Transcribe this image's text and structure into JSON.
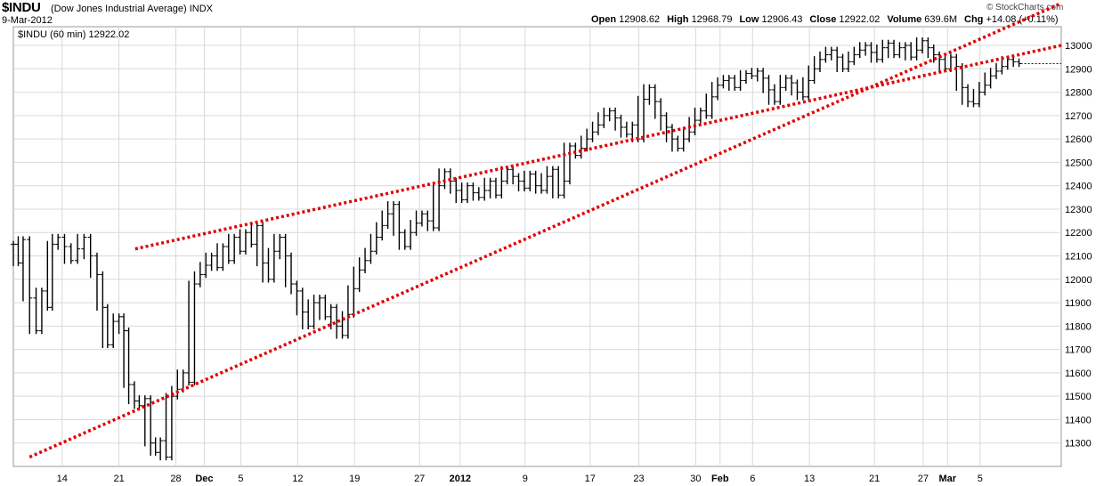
{
  "header": {
    "symbol": "$INDU",
    "company": "(Dow Jones Industrial Average)",
    "exchange": "INDX",
    "date": "9-Mar-2012",
    "brand": "© StockCharts.com",
    "quote": [
      {
        "label": "Open",
        "value": "12908.62"
      },
      {
        "label": "High",
        "value": "12968.79"
      },
      {
        "label": "Low",
        "value": "12906.43"
      },
      {
        "label": "Close",
        "value": "12922.02"
      },
      {
        "label": "Volume",
        "value": "639.6M"
      },
      {
        "label": "Chg",
        "value": "+14.08 (+0.11%)"
      }
    ]
  },
  "colors": {
    "price_bars": "#000000",
    "trendlines": "#e00000",
    "grid": "#d9d9d9",
    "last_price_marker": "#0000cc"
  },
  "chart_data": {
    "type": "line",
    "legend": "$INDU (60 min) 12922.02",
    "legend_placement": "top-left",
    "grid": true,
    "y_axis_side": "right",
    "ylim": [
      11200,
      13080
    ],
    "y_ticks": [
      11300,
      11400,
      11500,
      11600,
      11700,
      11800,
      11900,
      12000,
      12100,
      12200,
      12300,
      12400,
      12500,
      12600,
      12700,
      12800,
      12900,
      13000
    ],
    "x_ticks": [
      {
        "label": "14",
        "bold": false,
        "at": 14
      },
      {
        "label": "21",
        "bold": false,
        "at": 21
      },
      {
        "label": "28",
        "bold": false,
        "at": 28
      },
      {
        "label": "Dec",
        "bold": true,
        "at": 31.5
      },
      {
        "label": "5",
        "bold": false,
        "at": 36
      },
      {
        "label": "12",
        "bold": false,
        "at": 43
      },
      {
        "label": "19",
        "bold": false,
        "at": 50
      },
      {
        "label": "27",
        "bold": false,
        "at": 58
      },
      {
        "label": "2012",
        "bold": true,
        "at": 63
      },
      {
        "label": "9",
        "bold": false,
        "at": 71
      },
      {
        "label": "17",
        "bold": false,
        "at": 79
      },
      {
        "label": "23",
        "bold": false,
        "at": 85
      },
      {
        "label": "30",
        "bold": false,
        "at": 92
      },
      {
        "label": "Feb",
        "bold": true,
        "at": 95
      },
      {
        "label": "6",
        "bold": false,
        "at": 99
      },
      {
        "label": "13",
        "bold": false,
        "at": 106
      },
      {
        "label": "21",
        "bold": false,
        "at": 114
      },
      {
        "label": "27",
        "bold": false,
        "at": 120
      },
      {
        "label": "Mar",
        "bold": true,
        "at": 123
      },
      {
        "label": "5",
        "bold": false,
        "at": 127
      }
    ],
    "xlim": [
      8,
      137
    ],
    "close_points": [
      [
        8,
        12150
      ],
      [
        8.6,
        12070
      ],
      [
        9.2,
        12170
      ],
      [
        10,
        11920
      ],
      [
        10.8,
        11780
      ],
      [
        11.5,
        11950
      ],
      [
        12.2,
        11880
      ],
      [
        12.8,
        12150
      ],
      [
        13.5,
        12180
      ],
      [
        14.3,
        12140
      ],
      [
        15.1,
        12080
      ],
      [
        15.9,
        12130
      ],
      [
        16.7,
        12180
      ],
      [
        17.5,
        12100
      ],
      [
        18.3,
        12020
      ],
      [
        19.0,
        11880
      ],
      [
        19.6,
        11720
      ],
      [
        20.3,
        11820
      ],
      [
        21.0,
        11840
      ],
      [
        21.6,
        11780
      ],
      [
        22.2,
        11550
      ],
      [
        22.9,
        11480
      ],
      [
        23.5,
        11460
      ],
      [
        24.2,
        11490
      ],
      [
        24.9,
        11300
      ],
      [
        25.5,
        11260
      ],
      [
        26.1,
        11310
      ],
      [
        26.8,
        11240
      ],
      [
        27.5,
        11500
      ],
      [
        28.2,
        11530
      ],
      [
        28.9,
        11600
      ],
      [
        29.6,
        11560
      ],
      [
        30.3,
        11980
      ],
      [
        31.0,
        12020
      ],
      [
        31.7,
        12060
      ],
      [
        32.4,
        12100
      ],
      [
        33.1,
        12050
      ],
      [
        33.8,
        12140
      ],
      [
        34.5,
        12080
      ],
      [
        35.2,
        12180
      ],
      [
        35.9,
        12120
      ],
      [
        36.6,
        12200
      ],
      [
        37.3,
        12150
      ],
      [
        38.0,
        12230
      ],
      [
        38.7,
        12070
      ],
      [
        39.4,
        12000
      ],
      [
        40.1,
        12120
      ],
      [
        40.8,
        12180
      ],
      [
        41.5,
        12100
      ],
      [
        42.2,
        11980
      ],
      [
        42.9,
        11950
      ],
      [
        43.6,
        11860
      ],
      [
        44.3,
        11800
      ],
      [
        45.0,
        11900
      ],
      [
        45.7,
        11920
      ],
      [
        46.4,
        11840
      ],
      [
        47.1,
        11880
      ],
      [
        47.8,
        11800
      ],
      [
        48.5,
        11760
      ],
      [
        49.2,
        11850
      ],
      [
        49.9,
        11960
      ],
      [
        50.6,
        12040
      ],
      [
        51.3,
        12080
      ],
      [
        52.0,
        12120
      ],
      [
        52.7,
        12180
      ],
      [
        53.4,
        12230
      ],
      [
        54.1,
        12280
      ],
      [
        54.8,
        12320
      ],
      [
        55.5,
        12200
      ],
      [
        56.2,
        12140
      ],
      [
        56.9,
        12200
      ],
      [
        57.6,
        12240
      ],
      [
        58.3,
        12280
      ],
      [
        59.0,
        12250
      ],
      [
        59.7,
        12220
      ],
      [
        60.4,
        12400
      ],
      [
        61.1,
        12460
      ],
      [
        61.8,
        12420
      ],
      [
        62.5,
        12380
      ],
      [
        63.2,
        12340
      ],
      [
        63.9,
        12400
      ],
      [
        64.6,
        12370
      ],
      [
        65.3,
        12350
      ],
      [
        66.0,
        12380
      ],
      [
        66.7,
        12420
      ],
      [
        67.4,
        12360
      ],
      [
        68.1,
        12420
      ],
      [
        68.8,
        12470
      ],
      [
        69.5,
        12440
      ],
      [
        70.2,
        12420
      ],
      [
        70.9,
        12390
      ],
      [
        71.6,
        12450
      ],
      [
        72.3,
        12400
      ],
      [
        73.0,
        12380
      ],
      [
        73.7,
        12440
      ],
      [
        74.4,
        12470
      ],
      [
        75.1,
        12360
      ],
      [
        75.8,
        12420
      ],
      [
        76.5,
        12570
      ],
      [
        77.2,
        12530
      ],
      [
        77.9,
        12560
      ],
      [
        78.6,
        12600
      ],
      [
        79.3,
        12630
      ],
      [
        80.0,
        12660
      ],
      [
        80.7,
        12700
      ],
      [
        81.4,
        12720
      ],
      [
        82.1,
        12690
      ],
      [
        82.8,
        12650
      ],
      [
        83.5,
        12620
      ],
      [
        84.2,
        12660
      ],
      [
        84.9,
        12600
      ],
      [
        85.6,
        12770
      ],
      [
        86.3,
        12820
      ],
      [
        87.0,
        12760
      ],
      [
        87.7,
        12700
      ],
      [
        88.4,
        12650
      ],
      [
        89.1,
        12600
      ],
      [
        89.8,
        12560
      ],
      [
        90.5,
        12600
      ],
      [
        91.2,
        12630
      ],
      [
        91.9,
        12680
      ],
      [
        92.6,
        12720
      ],
      [
        93.3,
        12700
      ],
      [
        94.0,
        12780
      ],
      [
        94.7,
        12830
      ],
      [
        95.4,
        12850
      ],
      [
        96.1,
        12860
      ],
      [
        96.8,
        12820
      ],
      [
        97.5,
        12850
      ],
      [
        98.2,
        12880
      ],
      [
        98.9,
        12870
      ],
      [
        99.6,
        12890
      ],
      [
        100.3,
        12860
      ],
      [
        101.0,
        12810
      ],
      [
        101.7,
        12760
      ],
      [
        102.4,
        12820
      ],
      [
        103.1,
        12860
      ],
      [
        103.8,
        12840
      ],
      [
        104.5,
        12800
      ],
      [
        105.2,
        12780
      ],
      [
        105.9,
        12850
      ],
      [
        106.6,
        12900
      ],
      [
        107.3,
        12940
      ],
      [
        108.0,
        12960
      ],
      [
        108.7,
        12980
      ],
      [
        109.4,
        12950
      ],
      [
        110.1,
        12900
      ],
      [
        110.8,
        12930
      ],
      [
        111.5,
        12960
      ],
      [
        112.2,
        12980
      ],
      [
        112.9,
        13000
      ],
      [
        113.6,
        12970
      ],
      [
        114.3,
        12940
      ],
      [
        115.0,
        12990
      ],
      [
        115.7,
        13010
      ],
      [
        116.4,
        12960
      ],
      [
        117.1,
        12990
      ],
      [
        117.8,
        13000
      ],
      [
        118.5,
        12950
      ],
      [
        119.2,
        12980
      ],
      [
        119.9,
        13020
      ],
      [
        120.6,
        12990
      ],
      [
        121.3,
        12960
      ],
      [
        122.0,
        12940
      ],
      [
        122.7,
        12900
      ],
      [
        123.4,
        12950
      ],
      [
        124.1,
        12910
      ],
      [
        124.8,
        12820
      ],
      [
        125.5,
        12760
      ],
      [
        126.2,
        12750
      ],
      [
        126.9,
        12800
      ],
      [
        127.6,
        12830
      ],
      [
        128.3,
        12870
      ],
      [
        129.0,
        12890
      ],
      [
        129.7,
        12910
      ],
      [
        130.4,
        12940
      ],
      [
        131.1,
        12930
      ],
      [
        131.8,
        12922
      ]
    ],
    "trendlines": [
      {
        "from": [
          10,
          11240
        ],
        "to": [
          137,
          13180
        ]
      },
      {
        "from": [
          23,
          12130
        ],
        "to": [
          137,
          13000
        ]
      }
    ]
  }
}
